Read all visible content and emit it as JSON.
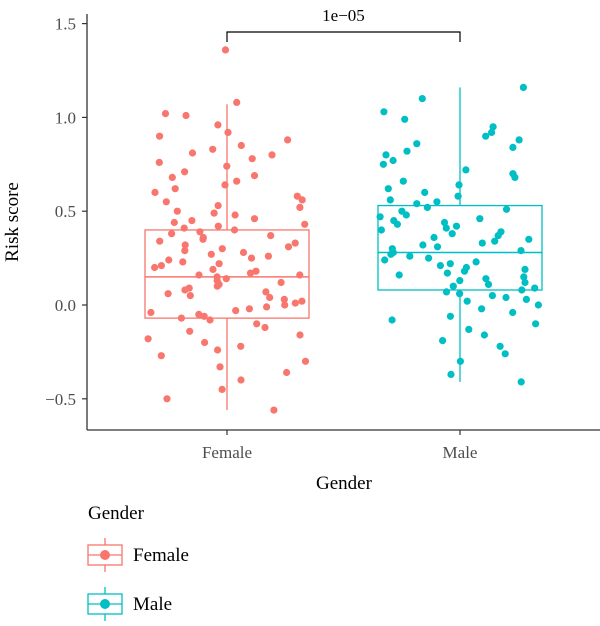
{
  "chart_data": {
    "type": "boxplot-jitter",
    "xlabel": "Gender",
    "ylabel": "Risk score",
    "categories": [
      "Female",
      "Male"
    ],
    "ylim": [
      -0.65,
      1.55
    ],
    "yticks": [
      -0.5,
      0.0,
      0.5,
      1.0,
      1.5
    ],
    "ytick_labels": [
      "−0.5",
      "0.0",
      "0.5",
      "1.0",
      "1.5"
    ],
    "grid": false,
    "comparison": {
      "groups": [
        "Female",
        "Male"
      ],
      "label": "1e−05"
    },
    "series": [
      {
        "name": "Female",
        "color": "#F8766D",
        "box": {
          "min": -0.56,
          "q1": -0.07,
          "median": 0.15,
          "q3": 0.4,
          "max": 1.07
        },
        "points": [
          1.36,
          1.08,
          1.02,
          1.01,
          0.96,
          0.92,
          0.9,
          0.88,
          0.85,
          0.83,
          0.81,
          0.8,
          0.78,
          0.76,
          0.74,
          0.71,
          0.69,
          0.68,
          0.66,
          0.64,
          0.62,
          0.6,
          0.58,
          0.56,
          0.55,
          0.53,
          0.52,
          0.5,
          0.49,
          0.48,
          0.46,
          0.45,
          0.44,
          0.43,
          0.42,
          0.41,
          0.4,
          0.39,
          0.38,
          0.37,
          0.36,
          0.35,
          0.34,
          0.33,
          0.32,
          0.31,
          0.3,
          0.29,
          0.28,
          0.27,
          0.26,
          0.25,
          0.24,
          0.23,
          0.22,
          0.21,
          0.2,
          0.19,
          0.18,
          0.17,
          0.16,
          0.16,
          0.15,
          0.14,
          0.13,
          0.12,
          0.11,
          0.1,
          0.09,
          0.08,
          0.07,
          0.06,
          0.05,
          0.04,
          0.03,
          0.02,
          0.01,
          0.0,
          -0.01,
          -0.02,
          -0.03,
          -0.04,
          -0.05,
          -0.06,
          -0.07,
          -0.08,
          -0.1,
          -0.12,
          -0.14,
          -0.16,
          -0.18,
          -0.2,
          -0.22,
          -0.24,
          -0.27,
          -0.3,
          -0.33,
          -0.36,
          -0.4,
          -0.45,
          -0.5,
          -0.56
        ]
      },
      {
        "name": "Male",
        "color": "#00BFC4",
        "box": {
          "min": -0.41,
          "q1": 0.08,
          "median": 0.28,
          "q3": 0.53,
          "max": 1.16
        },
        "points": [
          1.16,
          1.1,
          1.03,
          0.99,
          0.95,
          0.92,
          0.9,
          0.88,
          0.86,
          0.84,
          0.82,
          0.8,
          0.77,
          0.75,
          0.72,
          0.7,
          0.68,
          0.66,
          0.64,
          0.62,
          0.6,
          0.58,
          0.56,
          0.55,
          0.54,
          0.52,
          0.51,
          0.5,
          0.48,
          0.47,
          0.46,
          0.45,
          0.44,
          0.43,
          0.42,
          0.41,
          0.4,
          0.39,
          0.38,
          0.37,
          0.36,
          0.35,
          0.34,
          0.33,
          0.32,
          0.31,
          0.3,
          0.29,
          0.28,
          0.27,
          0.26,
          0.25,
          0.24,
          0.23,
          0.22,
          0.21,
          0.2,
          0.19,
          0.18,
          0.17,
          0.16,
          0.15,
          0.14,
          0.13,
          0.12,
          0.11,
          0.1,
          0.09,
          0.08,
          0.07,
          0.06,
          0.05,
          0.04,
          0.03,
          0.02,
          0.0,
          -0.02,
          -0.04,
          -0.06,
          -0.08,
          -0.1,
          -0.13,
          -0.16,
          -0.19,
          -0.22,
          -0.26,
          -0.3,
          -0.37,
          -0.41
        ]
      }
    ],
    "legend": {
      "title": "Gender",
      "position": "bottom-left",
      "entries": [
        "Female",
        "Male"
      ]
    }
  }
}
